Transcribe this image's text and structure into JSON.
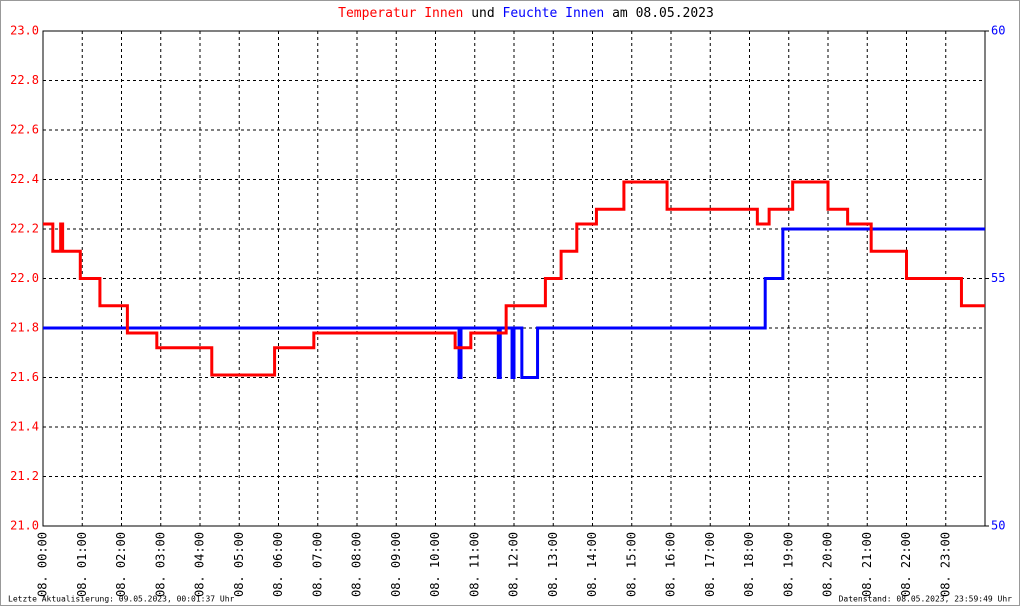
{
  "chart_data": {
    "type": "line",
    "title_joiner": "und",
    "title_suffix": "am 08.05.2023",
    "xlim": [
      0,
      24
    ],
    "xticks": [
      {
        "value": 0,
        "label": "08. 00:00"
      },
      {
        "value": 1,
        "label": "08. 01:00"
      },
      {
        "value": 2,
        "label": "08. 02:00"
      },
      {
        "value": 3,
        "label": "08. 03:00"
      },
      {
        "value": 4,
        "label": "08. 04:00"
      },
      {
        "value": 5,
        "label": "08. 05:00"
      },
      {
        "value": 6,
        "label": "08. 06:00"
      },
      {
        "value": 7,
        "label": "08. 07:00"
      },
      {
        "value": 8,
        "label": "08. 08:00"
      },
      {
        "value": 9,
        "label": "08. 09:00"
      },
      {
        "value": 10,
        "label": "08. 10:00"
      },
      {
        "value": 11,
        "label": "08. 11:00"
      },
      {
        "value": 12,
        "label": "08. 12:00"
      },
      {
        "value": 13,
        "label": "08. 13:00"
      },
      {
        "value": 14,
        "label": "08. 14:00"
      },
      {
        "value": 15,
        "label": "08. 15:00"
      },
      {
        "value": 16,
        "label": "08. 16:00"
      },
      {
        "value": 17,
        "label": "08. 17:00"
      },
      {
        "value": 18,
        "label": "08. 18:00"
      },
      {
        "value": 19,
        "label": "08. 19:00"
      },
      {
        "value": 20,
        "label": "08. 20:00"
      },
      {
        "value": 21,
        "label": "08. 21:00"
      },
      {
        "value": 22,
        "label": "08. 22:00"
      },
      {
        "value": 23,
        "label": "08. 23:00"
      }
    ],
    "ylim": [
      21.0,
      23.0
    ],
    "yticks": [
      {
        "value": 21.0,
        "label": "21.0"
      },
      21.2,
      21.4,
      21.6,
      21.8,
      {
        "value": 22.0,
        "label": "22.0"
      },
      22.2,
      22.4,
      22.6,
      22.8,
      {
        "value": 23.0,
        "label": "23.0"
      }
    ],
    "y2lim": [
      50,
      60
    ],
    "y2ticks": [
      50,
      55,
      60
    ],
    "grid": true,
    "series": [
      {
        "name": "Temperatur Innen",
        "color": "#ff0000",
        "x": [
          0,
          0.25,
          0.25,
          0.45,
          0.45,
          0.5,
          0.5,
          0.95,
          0.95,
          1.45,
          1.45,
          2.15,
          2.15,
          2.9,
          2.9,
          4.3,
          4.3,
          5.9,
          5.9,
          6.9,
          6.9,
          10.5,
          10.5,
          10.9,
          10.9,
          11.8,
          11.8,
          12.8,
          12.8,
          13.2,
          13.2,
          13.6,
          13.6,
          14.1,
          14.1,
          14.8,
          14.8,
          15.9,
          15.9,
          18.2,
          18.2,
          18.5,
          18.5,
          19.1,
          19.1,
          20.0,
          20.0,
          20.5,
          20.5,
          21.1,
          21.1,
          22.0,
          22.0,
          23.4,
          23.4,
          24
        ],
        "values": [
          22.22,
          22.22,
          22.11,
          22.11,
          22.22,
          22.22,
          22.11,
          22.11,
          22.0,
          22.0,
          21.89,
          21.89,
          21.78,
          21.78,
          21.72,
          21.72,
          21.61,
          21.61,
          21.72,
          21.72,
          21.78,
          21.78,
          21.72,
          21.72,
          21.78,
          21.78,
          21.89,
          21.89,
          22.0,
          22.0,
          22.11,
          22.11,
          22.22,
          22.22,
          22.28,
          22.28,
          22.39,
          22.39,
          22.28,
          22.28,
          22.22,
          22.22,
          22.28,
          22.28,
          22.39,
          22.39,
          22.28,
          22.28,
          22.22,
          22.22,
          22.11,
          22.11,
          22.0,
          22.0,
          21.89,
          21.89
        ]
      },
      {
        "name": "Feuchte Innen",
        "color": "#0000ff",
        "axis": "y2",
        "x": [
          0,
          10.6,
          10.6,
          10.65,
          10.65,
          11.6,
          11.6,
          11.65,
          11.65,
          11.95,
          11.95,
          12.0,
          12.0,
          12.2,
          12.2,
          12.6,
          12.6,
          18.4,
          18.4,
          18.85,
          18.85,
          24
        ],
        "values": [
          54,
          54,
          53,
          53,
          54,
          54,
          53,
          53,
          54,
          54,
          53,
          53,
          54,
          54,
          53,
          53,
          54,
          54,
          55,
          55,
          56,
          56
        ]
      }
    ]
  },
  "footer": {
    "left": "Letzte Aktualisierung: 09.05.2023, 00:01:37 Uhr",
    "right": "Datenstand: 08.05.2023, 23:59:49 Uhr"
  }
}
